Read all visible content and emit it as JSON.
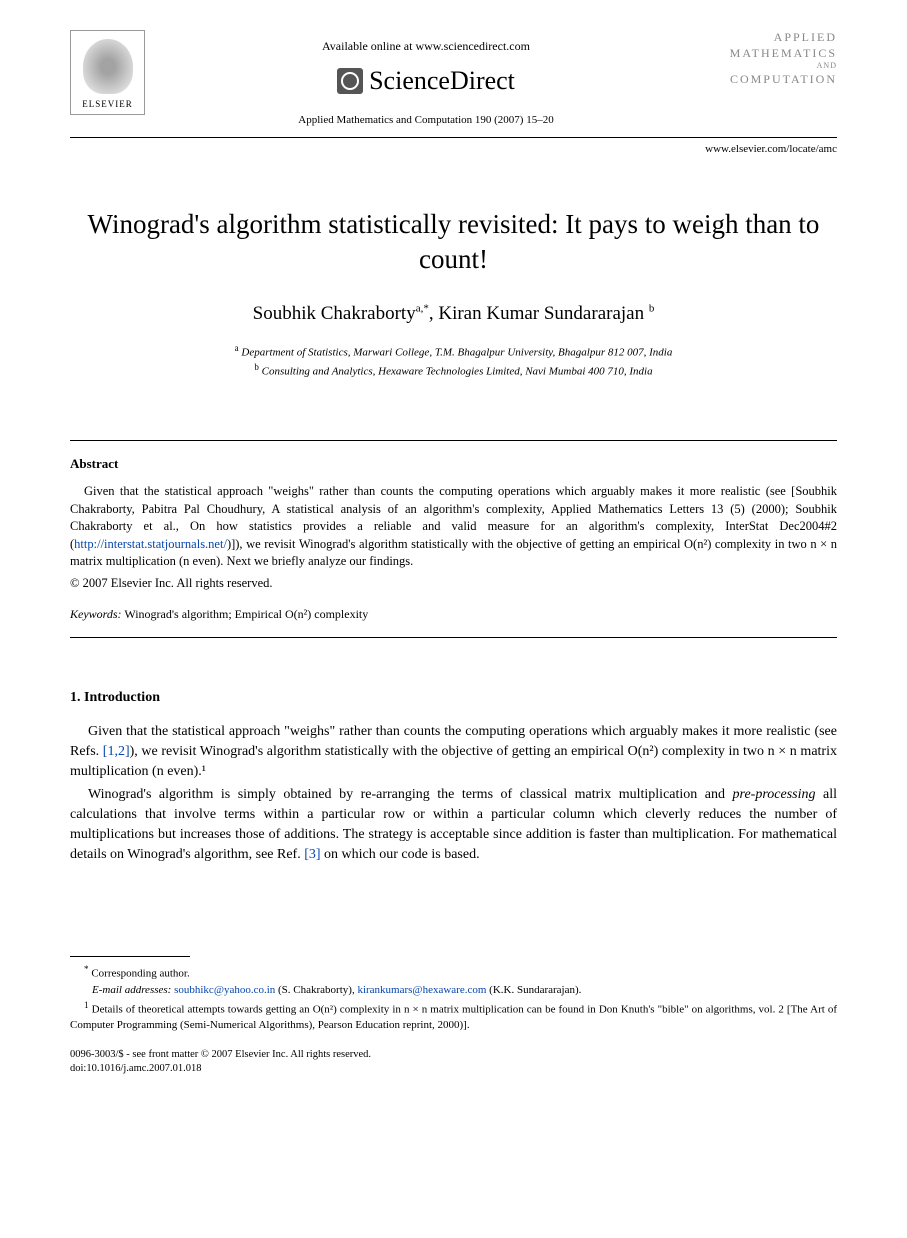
{
  "header": {
    "elsevier_label": "ELSEVIER",
    "available_online": "Available online at www.sciencedirect.com",
    "sciencedirect_label": "ScienceDirect",
    "journal_ref": "Applied Mathematics and Computation 190 (2007) 15–20",
    "journal_logo_line1": "APPLIED",
    "journal_logo_line2": "MATHEMATICS",
    "journal_logo_and": "AND",
    "journal_logo_line3": "COMPUTATION",
    "locate_url": "www.elsevier.com/locate/amc"
  },
  "title": "Winograd's algorithm statistically revisited: It pays to weigh than to count!",
  "authors": {
    "author1_name": "Soubhik Chakraborty",
    "author1_sup": "a,*",
    "separator": ", ",
    "author2_name": "Kiran Kumar Sundararajan",
    "author2_sup": "b"
  },
  "affiliations": {
    "aff1_sup": "a",
    "aff1_text": " Department of Statistics, Marwari College, T.M. Bhagalpur University, Bhagalpur 812 007, India",
    "aff2_sup": "b",
    "aff2_text": " Consulting and Analytics, Hexaware Technologies Limited, Navi Mumbai 400 710, India"
  },
  "abstract": {
    "heading": "Abstract",
    "body_pre": "Given that the statistical approach \"weighs\" rather than counts the computing operations which arguably makes it more realistic (see [Soubhik Chakraborty, Pabitra Pal Choudhury, A statistical analysis of an algorithm's complexity, Applied Mathematics Letters 13 (5) (2000); Soubhik Chakraborty et al., On how statistics provides a reliable and valid measure for an algorithm's complexity, InterStat Dec2004#2 (",
    "body_link": "http://interstat.statjournals.net/",
    "body_post": ")]), we revisit Winograd's algorithm statistically with the objective of getting an empirical O(n²) complexity in two n × n matrix multiplication (n even). Next we briefly analyze our findings.",
    "copyright": "© 2007 Elsevier Inc. All rights reserved."
  },
  "keywords": {
    "label": "Keywords:",
    "text": "Winograd's algorithm; Empirical O(n²) complexity"
  },
  "introduction": {
    "heading": "1. Introduction",
    "p1_pre": "Given that the statistical approach \"weighs\" rather than counts the computing operations which arguably makes it more realistic (see Refs. ",
    "p1_refs": "[1,2]",
    "p1_post": "), we revisit Winograd's algorithm statistically with the objective of getting an empirical O(n²) complexity in two n × n matrix multiplication (n even).¹",
    "p2_pre": "Winograd's algorithm is simply obtained by re-arranging the terms of classical matrix multiplication and ",
    "p2_em": "pre-processing",
    "p2_mid": " all calculations that involve terms within a particular row or within a particular column which cleverly reduces the number of multiplications but increases those of additions. The strategy is acceptable since addition is faster than multiplication. For mathematical details on Winograd's algorithm, see Ref. ",
    "p2_ref": "[3]",
    "p2_post": " on which our code is based."
  },
  "footnotes": {
    "corr_marker": "*",
    "corr_text": " Corresponding author.",
    "email_label": "E-mail addresses:",
    "email1": "soubhikc@yahoo.co.in",
    "email1_name": " (S. Chakraborty), ",
    "email2": "kirankumars@hexaware.com",
    "email2_name": " (K.K. Sundararajan).",
    "fn1_marker": "1",
    "fn1_text": " Details of theoretical attempts towards getting an O(n²) complexity in n × n matrix multiplication can be found in Don Knuth's \"bible\" on algorithms, vol. 2 [The Art of Computer Programming (Semi-Numerical Algorithms), Pearson Education reprint, 2000)]."
  },
  "footer": {
    "line1": "0096-3003/$ - see front matter © 2007 Elsevier Inc. All rights reserved.",
    "line2": "doi:10.1016/j.amc.2007.01.018"
  }
}
